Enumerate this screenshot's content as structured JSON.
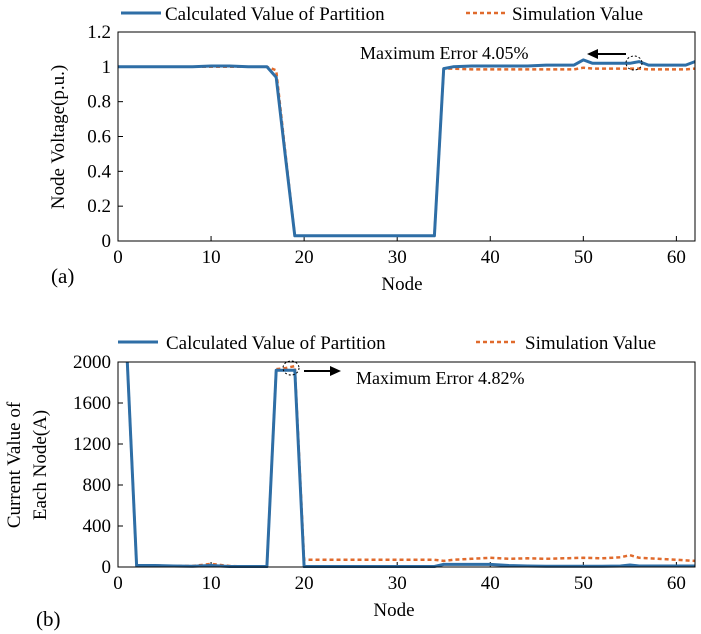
{
  "colors": {
    "calculated": "#2e6ea6",
    "simulation": "#e06a2c"
  },
  "chart_data": [
    {
      "type": "line",
      "panel_label": "(a)",
      "xlabel": "Node",
      "ylabel": "Node Voltage(p.u.)",
      "xlim": [
        0,
        62
      ],
      "ylim": [
        0,
        1.2
      ],
      "xticks": [
        0,
        10,
        20,
        30,
        40,
        50,
        60
      ],
      "yticks": [
        0,
        0.2,
        0.4,
        0.6,
        0.8,
        1,
        1.2
      ],
      "xtick_labels": [
        "0",
        "10",
        "20",
        "30",
        "40",
        "50",
        "60"
      ],
      "ytick_labels": [
        "0",
        "0.2",
        "0.4",
        "0.6",
        "0.8",
        "1",
        "1.2"
      ],
      "legend": [
        "Calculated Value of Partition",
        "Simulation Value"
      ],
      "annotation": {
        "text": "Maximum Error 4.05%",
        "x": 55,
        "y": 1.02
      },
      "series": [
        {
          "name": "Calculated Value of Partition",
          "style": "solid",
          "x": [
            0,
            2,
            4,
            6,
            8,
            10,
            11,
            12,
            14,
            16,
            17,
            18,
            19,
            20,
            22,
            24,
            26,
            28,
            30,
            32,
            34,
            35,
            36,
            38,
            40,
            42,
            44,
            46,
            48,
            49,
            50,
            51,
            52,
            54,
            55,
            56,
            57,
            58,
            60,
            61,
            62
          ],
          "y": [
            1.0,
            1.0,
            1.0,
            1.0,
            1.0,
            1.005,
            1.005,
            1.005,
            1.0,
            1.0,
            0.94,
            0.48,
            0.03,
            0.03,
            0.03,
            0.03,
            0.03,
            0.03,
            0.03,
            0.03,
            0.03,
            0.99,
            1.0,
            1.005,
            1.005,
            1.005,
            1.005,
            1.01,
            1.01,
            1.01,
            1.04,
            1.02,
            1.02,
            1.02,
            1.02,
            1.03,
            1.01,
            1.01,
            1.01,
            1.01,
            1.03
          ]
        },
        {
          "name": "Simulation Value",
          "style": "dashed",
          "x": [
            0,
            2,
            4,
            6,
            8,
            10,
            11,
            12,
            14,
            16,
            17,
            18,
            19,
            20,
            22,
            24,
            26,
            28,
            30,
            32,
            34,
            35,
            36,
            38,
            40,
            42,
            44,
            46,
            48,
            49,
            50,
            51,
            52,
            54,
            55,
            56,
            57,
            58,
            60,
            61,
            62
          ],
          "y": [
            1.0,
            1.0,
            1.0,
            1.0,
            1.0,
            1.0,
            1.0,
            1.0,
            1.0,
            1.0,
            0.98,
            0.5,
            0.03,
            0.03,
            0.03,
            0.03,
            0.03,
            0.03,
            0.03,
            0.03,
            0.03,
            0.99,
            0.99,
            0.985,
            0.985,
            0.985,
            0.985,
            0.985,
            0.985,
            0.985,
            0.995,
            0.99,
            0.99,
            0.99,
            0.99,
            0.99,
            0.985,
            0.985,
            0.985,
            0.985,
            0.99
          ]
        }
      ]
    },
    {
      "type": "line",
      "panel_label": "(b)",
      "xlabel": "Node",
      "ylabel": [
        "Current Value of",
        "Each Node(A)"
      ],
      "xlim": [
        0,
        62
      ],
      "ylim": [
        0,
        2000
      ],
      "xticks": [
        0,
        10,
        20,
        30,
        40,
        50,
        60
      ],
      "yticks": [
        0,
        400,
        800,
        1200,
        1600,
        2000
      ],
      "xtick_labels": [
        "0",
        "10",
        "20",
        "30",
        "40",
        "50",
        "60"
      ],
      "ytick_labels": [
        "0",
        "400",
        "800",
        "1200",
        "1600",
        "2000"
      ],
      "legend": [
        "Calculated Value of Partition",
        "Simulation Value"
      ],
      "annotation": {
        "text": "Maximum Error 4.82%",
        "x": 19,
        "y": 1960
      },
      "series": [
        {
          "name": "Calculated Value of Partition",
          "style": "solid",
          "x": [
            1,
            2,
            4,
            6,
            8,
            10,
            12,
            14,
            16,
            17,
            18,
            19,
            20,
            22,
            24,
            26,
            28,
            30,
            32,
            34,
            35,
            36,
            38,
            40,
            42,
            44,
            46,
            48,
            50,
            52,
            54,
            55,
            56,
            58,
            60,
            62
          ],
          "y": [
            2000,
            15,
            15,
            10,
            8,
            15,
            5,
            5,
            5,
            1920,
            1920,
            1920,
            5,
            5,
            5,
            5,
            5,
            5,
            5,
            5,
            25,
            25,
            25,
            25,
            15,
            10,
            8,
            8,
            8,
            8,
            10,
            20,
            10,
            10,
            10,
            10
          ]
        },
        {
          "name": "Simulation Value",
          "style": "dashed",
          "x": [
            1,
            2,
            4,
            6,
            8,
            10,
            12,
            14,
            16,
            17,
            18,
            19,
            20,
            22,
            24,
            26,
            28,
            30,
            32,
            34,
            35,
            36,
            38,
            40,
            42,
            44,
            46,
            48,
            50,
            52,
            54,
            55,
            56,
            58,
            60,
            62
          ],
          "y": [
            2000,
            15,
            15,
            10,
            10,
            30,
            10,
            5,
            5,
            1930,
            1940,
            1960,
            70,
            70,
            70,
            70,
            70,
            70,
            70,
            70,
            60,
            70,
            80,
            90,
            80,
            85,
            80,
            85,
            90,
            85,
            95,
            115,
            90,
            80,
            70,
            60
          ]
        }
      ]
    }
  ]
}
